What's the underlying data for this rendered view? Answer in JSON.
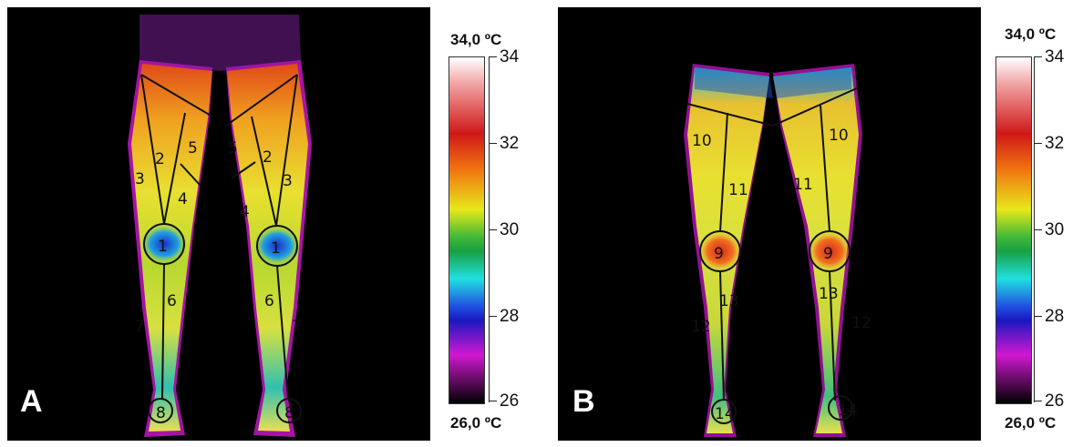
{
  "panel_a": {
    "letter": "A",
    "scale": {
      "max_label": "34,0 ºC",
      "min_label": "26,0 ºC",
      "ticks": [
        "34",
        "32",
        "30",
        "28",
        "26"
      ]
    },
    "regions": [
      "1",
      "2",
      "3",
      "4",
      "5",
      "5",
      "2",
      "3",
      "4",
      "1",
      "6",
      "7",
      "6",
      "7",
      "8",
      "8"
    ]
  },
  "panel_b": {
    "letter": "B",
    "scale": {
      "max_label": "34,0 ºC",
      "min_label": "26,0 ºC",
      "ticks": [
        "34",
        "32",
        "30",
        "28",
        "26"
      ]
    },
    "regions": [
      "10",
      "10",
      "11",
      "11",
      "9",
      "9",
      "13",
      "13",
      "12",
      "12",
      "14",
      "14"
    ]
  },
  "colors": {
    "scale_top": "#ffffff",
    "scale_red": "#d01818",
    "scale_yellow": "#e8e81a",
    "scale_green": "#18a040",
    "scale_cyan": "#20e0e0",
    "scale_blue": "#1818c0",
    "scale_magenta": "#d018d0",
    "scale_bottom": "#000000"
  }
}
